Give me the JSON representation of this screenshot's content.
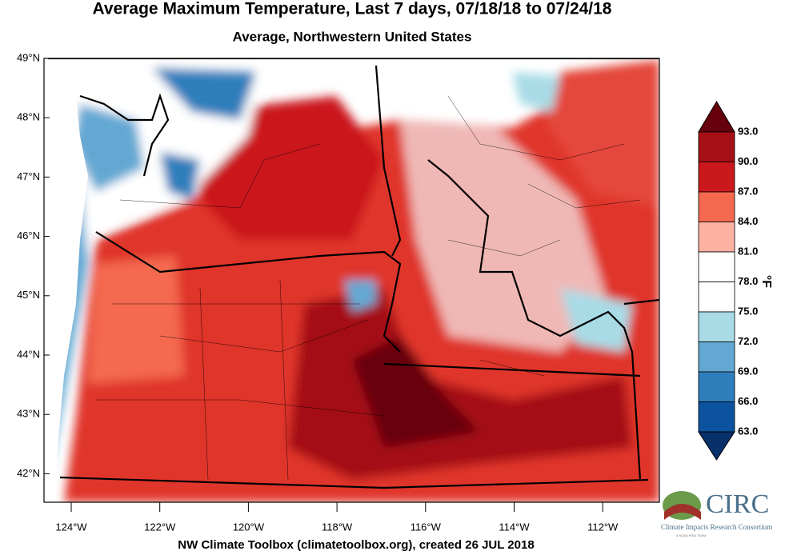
{
  "title": "Average Maximum Temperature, Last 7 days, 07/18/18 to 07/24/18",
  "subtitle": "Average, Northwestern United States",
  "map": {
    "lat_labels": [
      "49°N",
      "48°N",
      "47°N",
      "46°N",
      "45°N",
      "44°N",
      "43°N",
      "42°N"
    ],
    "lon_labels": [
      "124°W",
      "122°W",
      "120°W",
      "118°W",
      "116°W",
      "114°W",
      "112°W"
    ]
  },
  "colorbar": {
    "labels": [
      "93.0",
      "90.0",
      "87.0",
      "84.0",
      "81.0",
      "78.0",
      "75.0",
      "72.0",
      "69.0",
      "66.0",
      "63.0"
    ],
    "colors": [
      "#67000d",
      "#a50f15",
      "#cb181d",
      "#f4694f",
      "#fcb1a2",
      "#ffffff",
      "#ffffff",
      "#a9dbe6",
      "#63a8d3",
      "#2f7ebc",
      "#0b539e",
      "#08306b"
    ],
    "unit": "°F"
  },
  "footer": "NW Climate Toolbox (climatetoolbox.org), created 26 JUL 2018",
  "logo": {
    "name": "CIRC",
    "tagline": "Climate Impacts Research Consortium",
    "subtag": "A NOAA RISA TEAM"
  }
}
